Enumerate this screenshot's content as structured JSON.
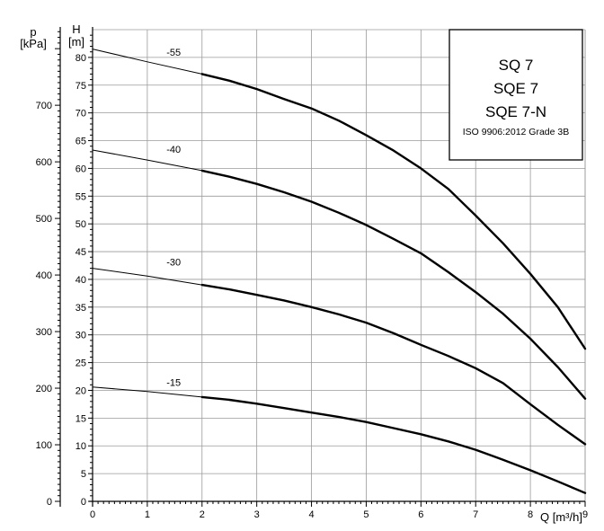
{
  "chart_data": {
    "type": "line",
    "title_lines": [
      "SQ 7",
      "SQE 7",
      "SQE 7-N"
    ],
    "subtitle": "ISO 9906:2012 Grade 3B",
    "xlabel": "Q [m³/h]",
    "ylabel_left": {
      "symbol": "p",
      "unit": "[kPa]"
    },
    "ylabel_right": {
      "symbol": "H",
      "unit": "[m]"
    },
    "xlim": [
      0,
      9
    ],
    "ylim": [
      0,
      85
    ],
    "plim": [
      0,
      833.6
    ],
    "x_ticks": [
      "0",
      "1",
      "2",
      "3",
      "4",
      "5",
      "6",
      "7",
      "8",
      "9"
    ],
    "y_ticks": [
      "0",
      "5",
      "10",
      "15",
      "20",
      "25",
      "30",
      "35",
      "40",
      "45",
      "50",
      "55",
      "60",
      "65",
      "70",
      "75",
      "80"
    ],
    "p_ticks": [
      "0",
      "100",
      "200",
      "300",
      "400",
      "500",
      "600",
      "700"
    ],
    "grid": true,
    "series": [
      {
        "name": "-55",
        "label_at": [
          1.35,
          80.3
        ],
        "x": [
          0,
          1,
          2,
          2.5,
          3,
          3.5,
          4,
          4.5,
          5,
          5.5,
          6,
          6.5,
          7,
          7.5,
          8,
          8.5,
          9
        ],
        "y": [
          81.5,
          79.2,
          77.0,
          75.8,
          74.3,
          72.5,
          70.8,
          68.6,
          66.0,
          63.2,
          60.0,
          56.3,
          51.5,
          46.5,
          41.0,
          35.0,
          27.5
        ]
      },
      {
        "name": "-40",
        "label_at": [
          1.35,
          62.8
        ],
        "x": [
          0,
          1,
          2,
          2.5,
          3,
          3.5,
          4,
          4.5,
          5,
          5.5,
          6,
          6.5,
          7,
          7.5,
          8,
          8.5,
          9
        ],
        "y": [
          63.3,
          61.5,
          59.6,
          58.5,
          57.2,
          55.7,
          54.0,
          52.0,
          49.8,
          47.3,
          44.7,
          41.3,
          37.7,
          33.8,
          29.3,
          24.2,
          18.5
        ]
      },
      {
        "name": "-30",
        "label_at": [
          1.35,
          42.5
        ],
        "x": [
          0,
          1,
          2,
          2.5,
          3,
          3.5,
          4,
          4.5,
          5,
          5.5,
          6,
          6.5,
          7,
          7.5,
          8,
          8.5,
          9
        ],
        "y": [
          42.0,
          40.6,
          39.0,
          38.2,
          37.2,
          36.2,
          35.0,
          33.7,
          32.2,
          30.3,
          28.2,
          26.2,
          24.0,
          21.3,
          17.5,
          13.8,
          10.3
        ]
      },
      {
        "name": "-15",
        "label_at": [
          1.35,
          20.8
        ],
        "x": [
          0,
          1,
          2,
          2.5,
          3,
          3.5,
          4,
          4.5,
          5,
          5.5,
          6,
          6.5,
          7,
          7.5,
          8,
          8.5,
          9
        ],
        "y": [
          20.6,
          19.8,
          18.8,
          18.3,
          17.6,
          16.8,
          16.0,
          15.2,
          14.3,
          13.2,
          12.1,
          10.8,
          9.3,
          7.5,
          5.6,
          3.6,
          1.5
        ]
      }
    ]
  }
}
